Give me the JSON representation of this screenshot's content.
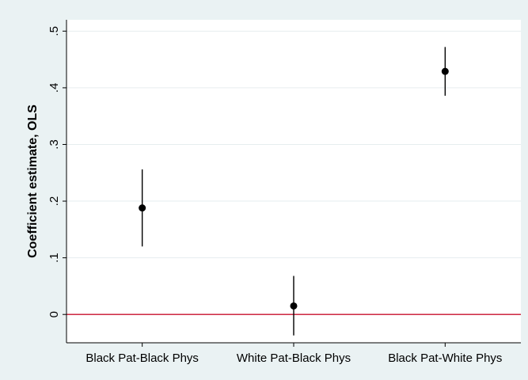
{
  "chart_data": {
    "type": "scatter",
    "title": "",
    "xlabel": "",
    "ylabel": "Coefficient estimate, OLS",
    "categories": [
      "Black Pat-Black Phys",
      "White Pat-Black Phys",
      "Black Pat-White Phys"
    ],
    "ylim": [
      -0.05,
      0.52
    ],
    "yticks": [
      0,
      0.1,
      0.2,
      0.3,
      0.4,
      0.5
    ],
    "ytick_labels": [
      "0",
      ".1",
      ".2",
      ".3",
      ".4",
      ".5"
    ],
    "grid": "horizontal",
    "series": [
      {
        "estimate": [
          0.188,
          0.015,
          0.429
        ],
        "ci_low": [
          0.12,
          -0.037,
          0.386
        ],
        "ci_high": [
          0.256,
          0.068,
          0.472
        ]
      }
    ],
    "reference_line": {
      "y": 0,
      "color": "#c8102e"
    },
    "colors": {
      "background": "#eaf2f3",
      "plot_area": "#ffffff",
      "grid": "#e6edef",
      "marker": "#000000"
    }
  }
}
